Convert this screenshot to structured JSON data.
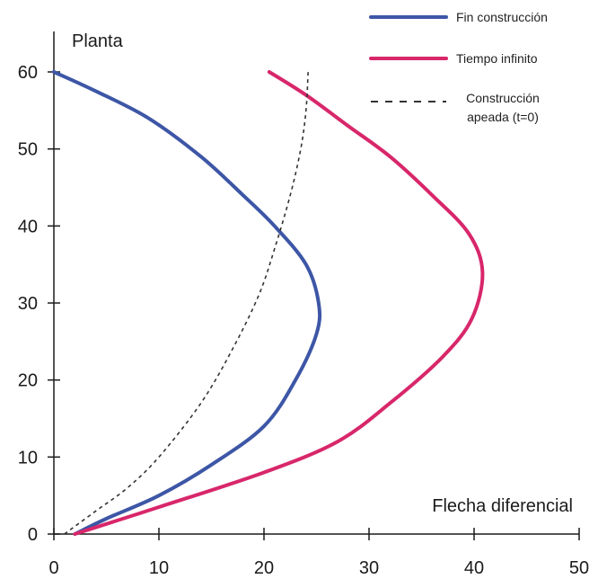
{
  "chart_data": {
    "type": "line",
    "xlabel": "Flecha diferencial",
    "ylabel": "Planta",
    "xlim": [
      0,
      50
    ],
    "ylim": [
      0,
      60
    ],
    "x_ticks": [
      "0",
      "10",
      "20",
      "30",
      "40",
      "50"
    ],
    "y_ticks": [
      "0",
      "10",
      "20",
      "30",
      "40",
      "50",
      "60"
    ],
    "grid": false,
    "legend_position": "top-right",
    "series": [
      {
        "name": "Fin construcción",
        "color": "#3d56a6",
        "style": "solid",
        "points": [
          [
            2,
            0
          ],
          [
            5,
            2
          ],
          [
            10,
            5
          ],
          [
            15,
            9
          ],
          [
            20,
            14
          ],
          [
            23,
            20
          ],
          [
            25,
            26
          ],
          [
            25.2,
            30
          ],
          [
            24,
            35
          ],
          [
            21,
            40
          ],
          [
            18,
            44
          ],
          [
            14,
            49
          ],
          [
            9,
            54
          ],
          [
            4,
            57.5
          ],
          [
            0,
            60
          ]
        ]
      },
      {
        "name": "Tiempo infinito",
        "color": "#d8276b",
        "style": "solid",
        "points": [
          [
            2,
            0
          ],
          [
            10,
            3.5
          ],
          [
            20,
            8
          ],
          [
            27,
            12
          ],
          [
            32,
            17
          ],
          [
            37,
            23
          ],
          [
            39.8,
            28
          ],
          [
            40.8,
            34
          ],
          [
            39.5,
            39
          ],
          [
            36,
            44
          ],
          [
            32,
            49
          ],
          [
            28,
            53
          ],
          [
            24,
            57
          ],
          [
            20.5,
            60
          ]
        ]
      },
      {
        "name": "Construcción apeada (t=0)",
        "color": "#333333",
        "style": "dashed",
        "points": [
          [
            1,
            0
          ],
          [
            4,
            3
          ],
          [
            7,
            6
          ],
          [
            10,
            10
          ],
          [
            14,
            17
          ],
          [
            17,
            24
          ],
          [
            19.5,
            31
          ],
          [
            21,
            37
          ],
          [
            22.5,
            44
          ],
          [
            23.5,
            50
          ],
          [
            24,
            55
          ],
          [
            24.2,
            60
          ]
        ]
      }
    ]
  }
}
